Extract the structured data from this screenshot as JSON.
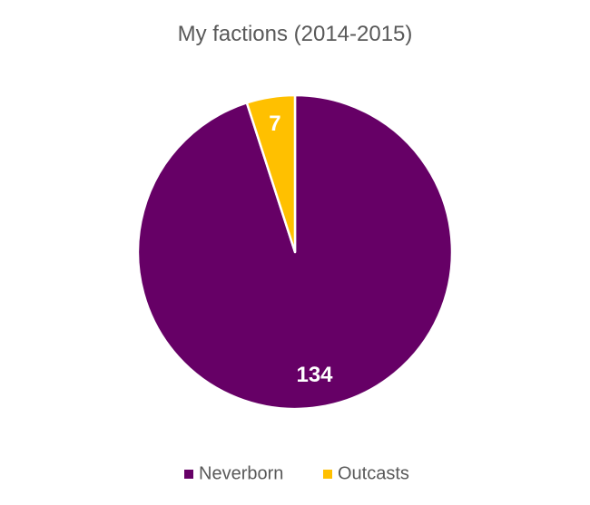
{
  "chart_data": {
    "type": "pie",
    "title": "My factions (2014-2015)",
    "categories": [
      "Neverborn",
      "Outcasts"
    ],
    "values": [
      134,
      7
    ],
    "data_labels": [
      "134",
      "7"
    ],
    "colors": [
      "#660066",
      "#FFC000"
    ],
    "start_angle_deg": 0,
    "direction": "clockwise",
    "legend": {
      "placement": "bottom",
      "items": [
        "Neverborn",
        "Outcasts"
      ]
    },
    "slice_border_color": "#ffffff"
  }
}
